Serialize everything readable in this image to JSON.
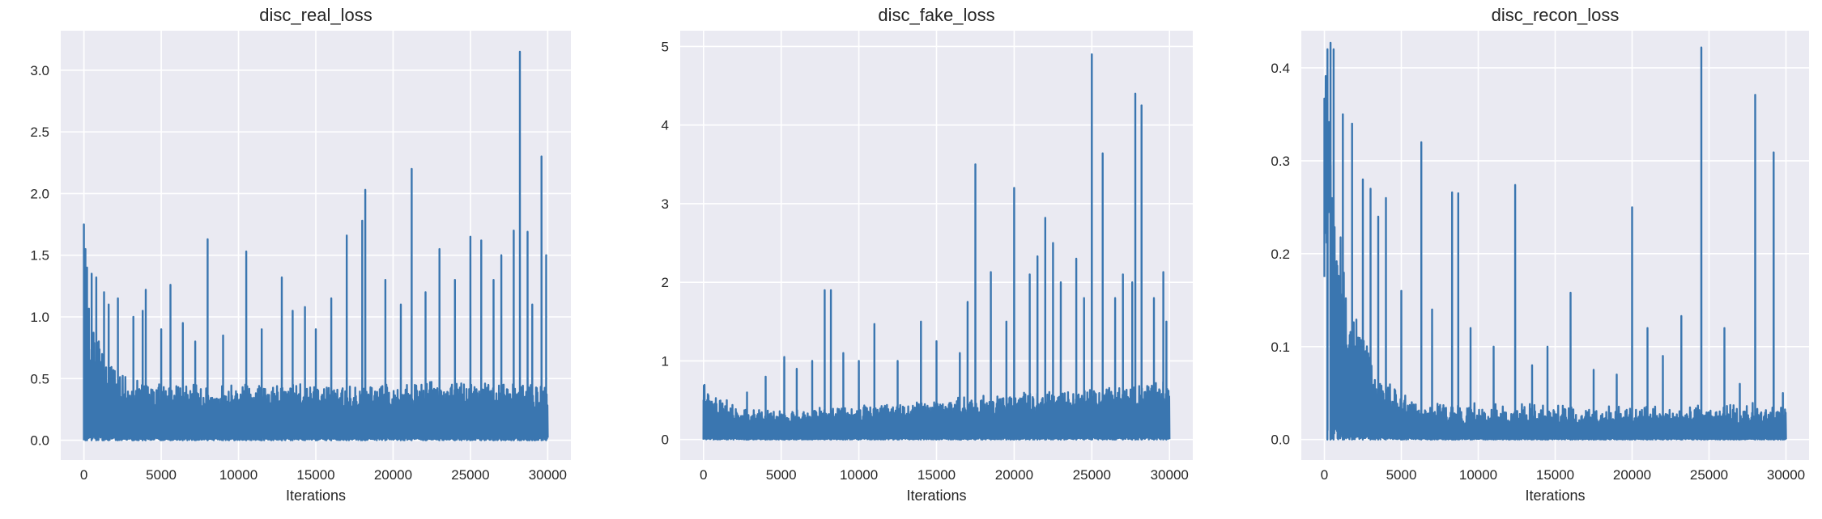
{
  "figure": {
    "background": "#ffffff",
    "axes_background": "#eaeaf2",
    "grid_color": "#ffffff",
    "line_color": "#3a76b0",
    "text_color": "#262626",
    "grid": true
  },
  "chart_data": [
    {
      "type": "line",
      "title": "disc_real_loss",
      "xlabel": "Iterations",
      "ylabel": "",
      "xlim": [
        -1500,
        31500
      ],
      "ylim": [
        -0.16,
        3.32
      ],
      "xticks": [
        0,
        5000,
        10000,
        15000,
        20000,
        25000,
        30000
      ],
      "yticks": [
        0.0,
        0.5,
        1.0,
        1.5,
        2.0,
        2.5,
        3.0
      ],
      "series": [
        {
          "values_summary": {
            "iterations": 30000,
            "initial": 1.75,
            "floor": 0.0,
            "spikes": [
              [
                0,
                1.75
              ],
              [
                100,
                1.55
              ],
              [
                200,
                1.4
              ],
              [
                500,
                1.35
              ],
              [
                800,
                1.32
              ],
              [
                1300,
                1.2
              ],
              [
                1600,
                1.1
              ],
              [
                2200,
                1.15
              ],
              [
                3200,
                1.0
              ],
              [
                3800,
                1.05
              ],
              [
                4000,
                1.22
              ],
              [
                5000,
                0.9
              ],
              [
                5600,
                1.26
              ],
              [
                6400,
                0.95
              ],
              [
                7200,
                0.8
              ],
              [
                8000,
                1.63
              ],
              [
                9000,
                0.85
              ],
              [
                10500,
                1.53
              ],
              [
                11500,
                0.9
              ],
              [
                12800,
                1.32
              ],
              [
                13500,
                1.05
              ],
              [
                14300,
                1.08
              ],
              [
                15000,
                0.9
              ],
              [
                16000,
                1.15
              ],
              [
                17000,
                1.66
              ],
              [
                18000,
                1.78
              ],
              [
                18200,
                2.03
              ],
              [
                19500,
                1.3
              ],
              [
                20500,
                1.1
              ],
              [
                21200,
                2.2
              ],
              [
                22100,
                1.2
              ],
              [
                23000,
                1.55
              ],
              [
                24000,
                1.3
              ],
              [
                25000,
                1.65
              ],
              [
                25700,
                1.62
              ],
              [
                26500,
                1.3
              ],
              [
                27000,
                1.5
              ],
              [
                27800,
                1.7
              ],
              [
                28200,
                3.15
              ],
              [
                28700,
                1.69
              ],
              [
                29000,
                1.1
              ],
              [
                29600,
                2.3
              ],
              [
                29900,
                1.5
              ]
            ]
          }
        }
      ]
    },
    {
      "type": "line",
      "title": "disc_fake_loss",
      "xlabel": "Iterations",
      "ylabel": "",
      "xlim": [
        -1500,
        31500
      ],
      "ylim": [
        -0.26,
        5.2
      ],
      "xticks": [
        0,
        5000,
        10000,
        15000,
        20000,
        25000,
        30000
      ],
      "yticks": [
        0,
        1,
        2,
        3,
        4,
        5
      ],
      "series": [
        {
          "values_summary": {
            "iterations": 30000,
            "initial": 0.5,
            "floor": 0.0,
            "spikes": [
              [
                0,
                0.5
              ],
              [
                1500,
                0.5
              ],
              [
                2800,
                0.6
              ],
              [
                4000,
                0.8
              ],
              [
                5200,
                1.05
              ],
              [
                6000,
                0.9
              ],
              [
                7000,
                1.0
              ],
              [
                7800,
                1.9
              ],
              [
                8200,
                1.9
              ],
              [
                9000,
                1.1
              ],
              [
                10000,
                1.0
              ],
              [
                11000,
                1.47
              ],
              [
                12500,
                1.0
              ],
              [
                14000,
                1.5
              ],
              [
                15000,
                1.25
              ],
              [
                16500,
                1.1
              ],
              [
                17000,
                1.75
              ],
              [
                17500,
                3.5
              ],
              [
                18500,
                2.13
              ],
              [
                19500,
                1.5
              ],
              [
                20000,
                3.2
              ],
              [
                21000,
                2.1
              ],
              [
                21500,
                2.33
              ],
              [
                22000,
                2.82
              ],
              [
                22500,
                2.5
              ],
              [
                23000,
                2.0
              ],
              [
                24000,
                2.3
              ],
              [
                24500,
                1.8
              ],
              [
                25000,
                4.9
              ],
              [
                25700,
                3.64
              ],
              [
                26500,
                1.8
              ],
              [
                27000,
                2.1
              ],
              [
                27600,
                2.0
              ],
              [
                27800,
                4.4
              ],
              [
                28200,
                4.25
              ],
              [
                29000,
                1.8
              ],
              [
                29600,
                2.13
              ],
              [
                29800,
                1.5
              ]
            ]
          }
        }
      ]
    },
    {
      "type": "line",
      "title": "disc_recon_loss",
      "xlabel": "Iterations",
      "ylabel": "",
      "xlim": [
        -1500,
        31500
      ],
      "ylim": [
        -0.022,
        0.44
      ],
      "xticks": [
        0,
        5000,
        10000,
        15000,
        20000,
        25000,
        30000
      ],
      "yticks": [
        0.0,
        0.1,
        0.2,
        0.3,
        0.4
      ],
      "series": [
        {
          "values_summary": {
            "iterations": 30000,
            "initial": 0.175,
            "peak": 0.427,
            "floor": 0.0,
            "spikes": [
              [
                200,
                0.42
              ],
              [
                400,
                0.427
              ],
              [
                600,
                0.42
              ],
              [
                1200,
                0.35
              ],
              [
                1800,
                0.34
              ],
              [
                2500,
                0.28
              ],
              [
                3000,
                0.27
              ],
              [
                3500,
                0.24
              ],
              [
                4000,
                0.26
              ],
              [
                5000,
                0.16
              ],
              [
                6300,
                0.32
              ],
              [
                7000,
                0.14
              ],
              [
                8300,
                0.266
              ],
              [
                8700,
                0.265
              ],
              [
                9500,
                0.12
              ],
              [
                11000,
                0.1
              ],
              [
                12400,
                0.274
              ],
              [
                13500,
                0.08
              ],
              [
                14500,
                0.1
              ],
              [
                16000,
                0.158
              ],
              [
                17500,
                0.075
              ],
              [
                19000,
                0.07
              ],
              [
                20000,
                0.25
              ],
              [
                21000,
                0.12
              ],
              [
                22000,
                0.09
              ],
              [
                23200,
                0.133
              ],
              [
                24500,
                0.422
              ],
              [
                26000,
                0.12
              ],
              [
                27000,
                0.06
              ],
              [
                28000,
                0.371
              ],
              [
                29200,
                0.309
              ],
              [
                29800,
                0.05
              ]
            ]
          }
        }
      ]
    }
  ]
}
